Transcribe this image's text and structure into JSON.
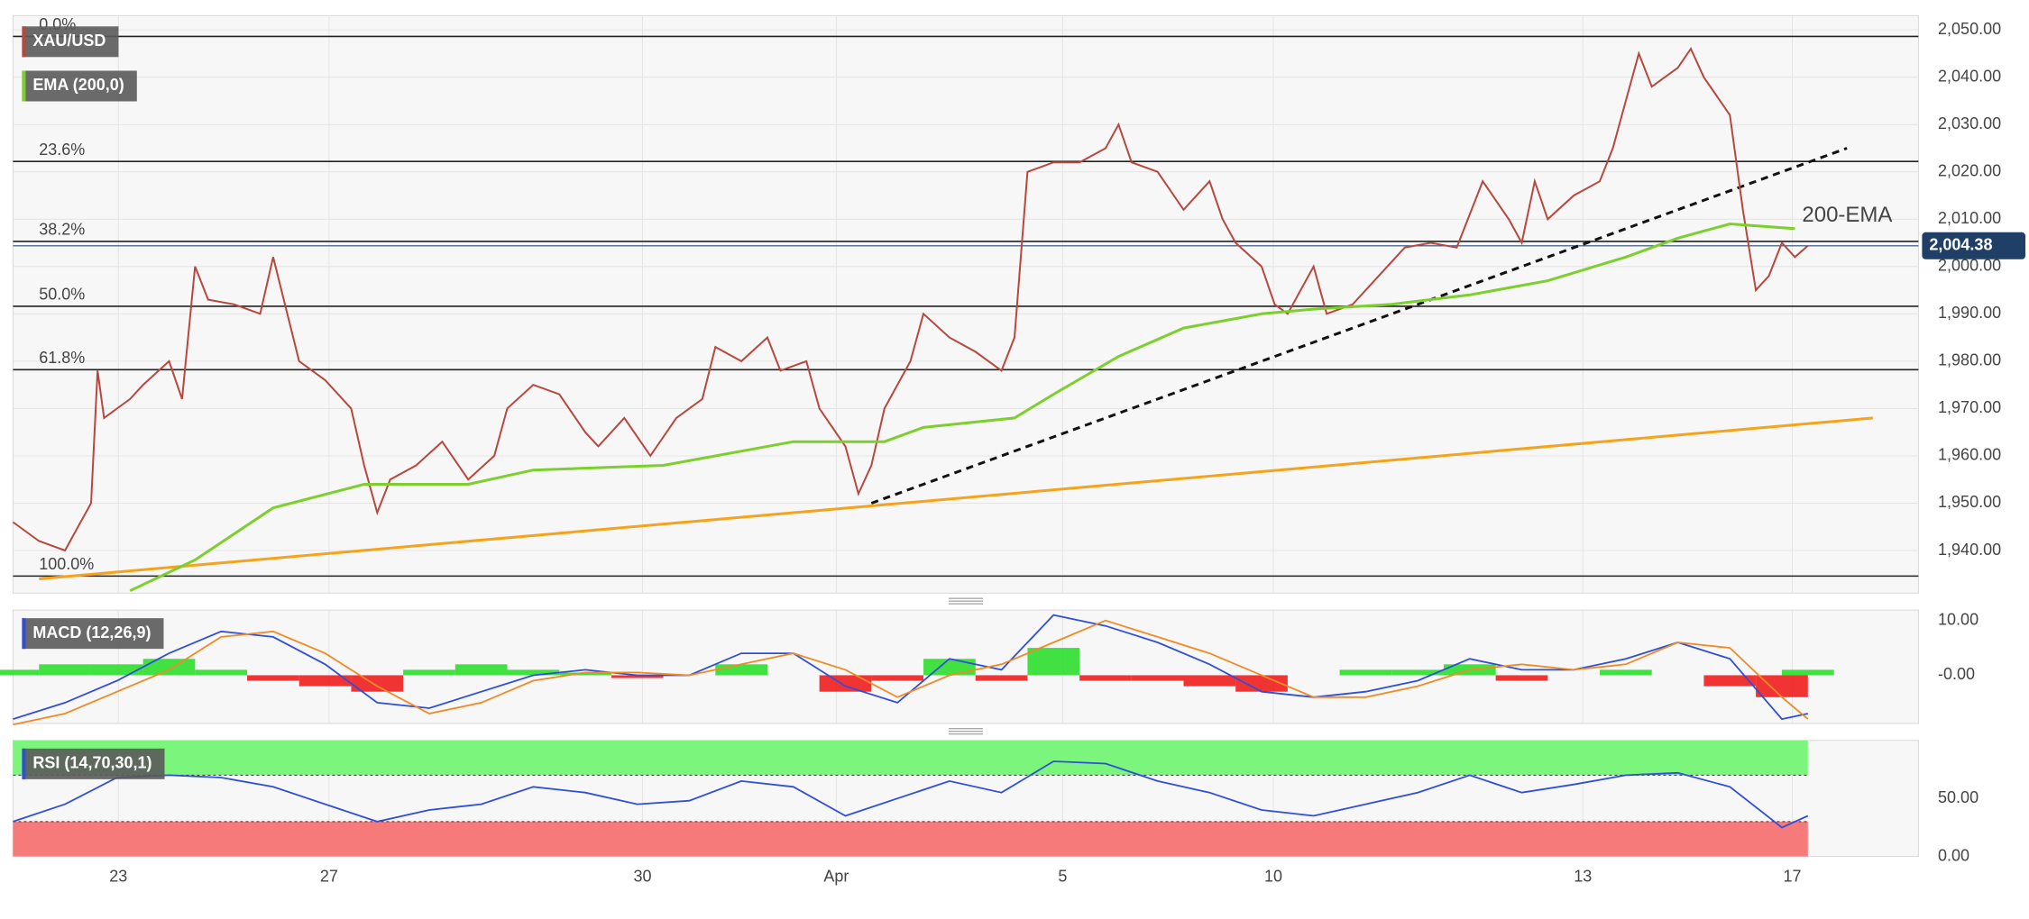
{
  "chart_data": [
    {
      "type": "price",
      "xlim": [
        0,
        146.5
      ],
      "xticks": [
        {
          "value": 8.1,
          "label": "23"
        },
        {
          "value": 24.3,
          "label": "27"
        },
        {
          "value": 48.4,
          "label": "30"
        },
        {
          "value": 63.3,
          "label": "Apr"
        },
        {
          "value": 80.7,
          "label": "5"
        },
        {
          "value": 96.9,
          "label": "10"
        },
        {
          "value": 120.7,
          "label": "13"
        },
        {
          "value": 136.8,
          "label": "17"
        }
      ],
      "ylim": [
        1931,
        2053
      ],
      "yticks": [
        {
          "value": 1940,
          "label": "1,940.00"
        },
        {
          "value": 1950,
          "label": "1,950.00"
        },
        {
          "value": 1960,
          "label": "1,960.00"
        },
        {
          "value": 1970,
          "label": "1,970.00"
        },
        {
          "value": 1980,
          "label": "1,980.00"
        },
        {
          "value": 1990,
          "label": "1,990.00"
        },
        {
          "value": 2000,
          "label": "2,000.00"
        },
        {
          "value": 2010,
          "label": "2,010.00"
        },
        {
          "value": 2020,
          "label": "2,020.00"
        },
        {
          "value": 2030,
          "label": "2,030.00"
        },
        {
          "value": 2040,
          "label": "2,040.00"
        },
        {
          "value": 2050,
          "label": "2,050.00"
        }
      ],
      "grid": true,
      "series": [
        {
          "name": "XAU/USD",
          "color": "#b8473d",
          "x": [
            0,
            2,
            4,
            5,
            6,
            6.5,
            7,
            9,
            10,
            12,
            13,
            14,
            15,
            17,
            19,
            20,
            21,
            22,
            24,
            26,
            27,
            28,
            29,
            31,
            33,
            35,
            37,
            38,
            40,
            42,
            44,
            45,
            47,
            49,
            51,
            53,
            54,
            56,
            58,
            59,
            61,
            62,
            64,
            65,
            66,
            67,
            69,
            70,
            72,
            74,
            76,
            77,
            78,
            80,
            82,
            84,
            85,
            86,
            88,
            90,
            92,
            93,
            94,
            96,
            97,
            98,
            100,
            101,
            103,
            105,
            107,
            109,
            111,
            113,
            115,
            116,
            117,
            118,
            120,
            122,
            123,
            125,
            126,
            128,
            129,
            130,
            132,
            133,
            134,
            135,
            136,
            137,
            138
          ],
          "values": [
            1946,
            1942,
            1940,
            1945,
            1950,
            1978,
            1968,
            1972,
            1975,
            1980,
            1972,
            2000,
            1993,
            1992,
            1990,
            2002,
            1991,
            1980,
            1976,
            1970,
            1958,
            1948,
            1955,
            1958,
            1963,
            1955,
            1960,
            1970,
            1975,
            1973,
            1965,
            1962,
            1968,
            1960,
            1968,
            1972,
            1983,
            1980,
            1985,
            1978,
            1980,
            1970,
            1962,
            1952,
            1958,
            1970,
            1980,
            1990,
            1985,
            1982,
            1978,
            1985,
            2020,
            2022,
            2022,
            2025,
            2030,
            2022,
            2020,
            2012,
            2018,
            2010,
            2005,
            2000,
            1992,
            1990,
            2000,
            1990,
            1992,
            1998,
            2004,
            2005,
            2004,
            2018,
            2010,
            2005,
            2018,
            2010,
            2015,
            2018,
            2025,
            2045,
            2038,
            2042,
            2046,
            2040,
            2032,
            2012,
            1995,
            1998,
            2005,
            2002,
            2004.38
          ]
        },
        {
          "name": "EMA (200,0)",
          "color": "#7ccf2c",
          "x": [
            9,
            14,
            20,
            27,
            35,
            40,
            50,
            60,
            67,
            70,
            77,
            80,
            85,
            90,
            96,
            100,
            106,
            112,
            118,
            124,
            128,
            132,
            137
          ],
          "values": [
            1931.5,
            1938,
            1949,
            1954,
            1954,
            1957,
            1958,
            1963,
            1963,
            1966,
            1968,
            1973,
            1981,
            1987,
            1990,
            1991,
            1992,
            1994,
            1997,
            2002,
            2006,
            2009,
            2008
          ]
        }
      ],
      "annotation": "200-EMA",
      "trendlines": [
        {
          "x": [
            2,
            143
          ],
          "values": [
            1934,
            1968
          ],
          "color": "#f5a31a",
          "dashed": false
        },
        {
          "x": [
            66,
            141
          ],
          "values": [
            1950,
            2025
          ],
          "color": "#111111",
          "dashed": true
        }
      ],
      "fib_levels": [
        {
          "label": "0.0%",
          "value": 2048.6
        },
        {
          "label": "23.6%",
          "value": 2022.2
        },
        {
          "label": "38.2%",
          "value": 2005.3
        },
        {
          "label": "50.0%",
          "value": 1991.6
        },
        {
          "label": "61.8%",
          "value": 1978.2
        },
        {
          "label": "100.0%",
          "value": 1934.6
        }
      ],
      "last_price": {
        "value": 2004.38,
        "label": "2,004.38"
      }
    },
    {
      "type": "macd",
      "title": "MACD (12,26,9)",
      "ylim": [
        -8.8,
        11.9
      ],
      "yticks": [
        {
          "value": 0,
          "label": "-0.00"
        },
        {
          "value": 10,
          "label": "10.00"
        }
      ],
      "x": [
        0,
        4,
        8,
        12,
        16,
        20,
        24,
        28,
        32,
        36,
        40,
        44,
        48,
        52,
        56,
        60,
        64,
        68,
        72,
        76,
        80,
        84,
        88,
        92,
        96,
        100,
        104,
        108,
        112,
        116,
        120,
        124,
        128,
        132,
        136,
        138
      ],
      "series": [
        {
          "color": "#2f4fd8",
          "values": [
            -8,
            -5,
            -1,
            4,
            8,
            7,
            2,
            -5,
            -6,
            -3,
            0,
            1,
            0,
            0,
            4,
            4,
            -2,
            -5,
            3,
            1,
            11,
            9,
            6,
            2,
            -3,
            -4,
            -3,
            -1,
            3,
            1,
            1,
            3,
            6,
            3,
            -8,
            -7
          ]
        },
        {
          "color": "#f08a24",
          "values": [
            -9,
            -7,
            -3,
            1,
            7,
            8,
            4,
            -2,
            -7,
            -5,
            -1,
            0.5,
            0.5,
            0,
            2,
            4,
            1,
            -4,
            0,
            2,
            6,
            10,
            7,
            4,
            0,
            -4,
            -4,
            -2,
            1,
            2,
            1,
            2,
            6,
            5,
            -4,
            -8
          ]
        }
      ],
      "histogram": {
        "up_color": "#22dd22",
        "down_color": "#ee1111",
        "values": [
          1,
          2,
          2,
          3,
          1,
          -1,
          -2,
          -3,
          1,
          2,
          1,
          0.5,
          -0.5,
          0,
          2,
          0,
          -3,
          -1,
          3,
          -1,
          5,
          -1,
          -1,
          -2,
          -3,
          0,
          1,
          1,
          2,
          -1,
          0,
          1,
          0,
          -2,
          -4,
          1
        ]
      }
    },
    {
      "type": "rsi",
      "title": "RSI (14,70,30,1)",
      "ylim": [
        0,
        100
      ],
      "yticks": [
        {
          "value": 0,
          "label": "0.00"
        },
        {
          "value": 50,
          "label": "50.00"
        }
      ],
      "x": [
        0,
        4,
        8,
        12,
        16,
        20,
        24,
        28,
        32,
        36,
        40,
        44,
        48,
        52,
        56,
        60,
        64,
        68,
        72,
        76,
        80,
        84,
        88,
        92,
        96,
        100,
        104,
        108,
        112,
        116,
        120,
        124,
        128,
        132,
        136,
        138
      ],
      "values": [
        30,
        45,
        68,
        70,
        68,
        60,
        45,
        30,
        40,
        45,
        60,
        55,
        45,
        48,
        65,
        60,
        35,
        50,
        65,
        55,
        82,
        80,
        65,
        55,
        40,
        35,
        45,
        55,
        70,
        55,
        62,
        70,
        72,
        60,
        25,
        35
      ],
      "color": "#2f4fd8",
      "upper": 70,
      "lower": 30,
      "upper_color": "#7cf57c",
      "lower_color": "#f77a7a"
    }
  ]
}
